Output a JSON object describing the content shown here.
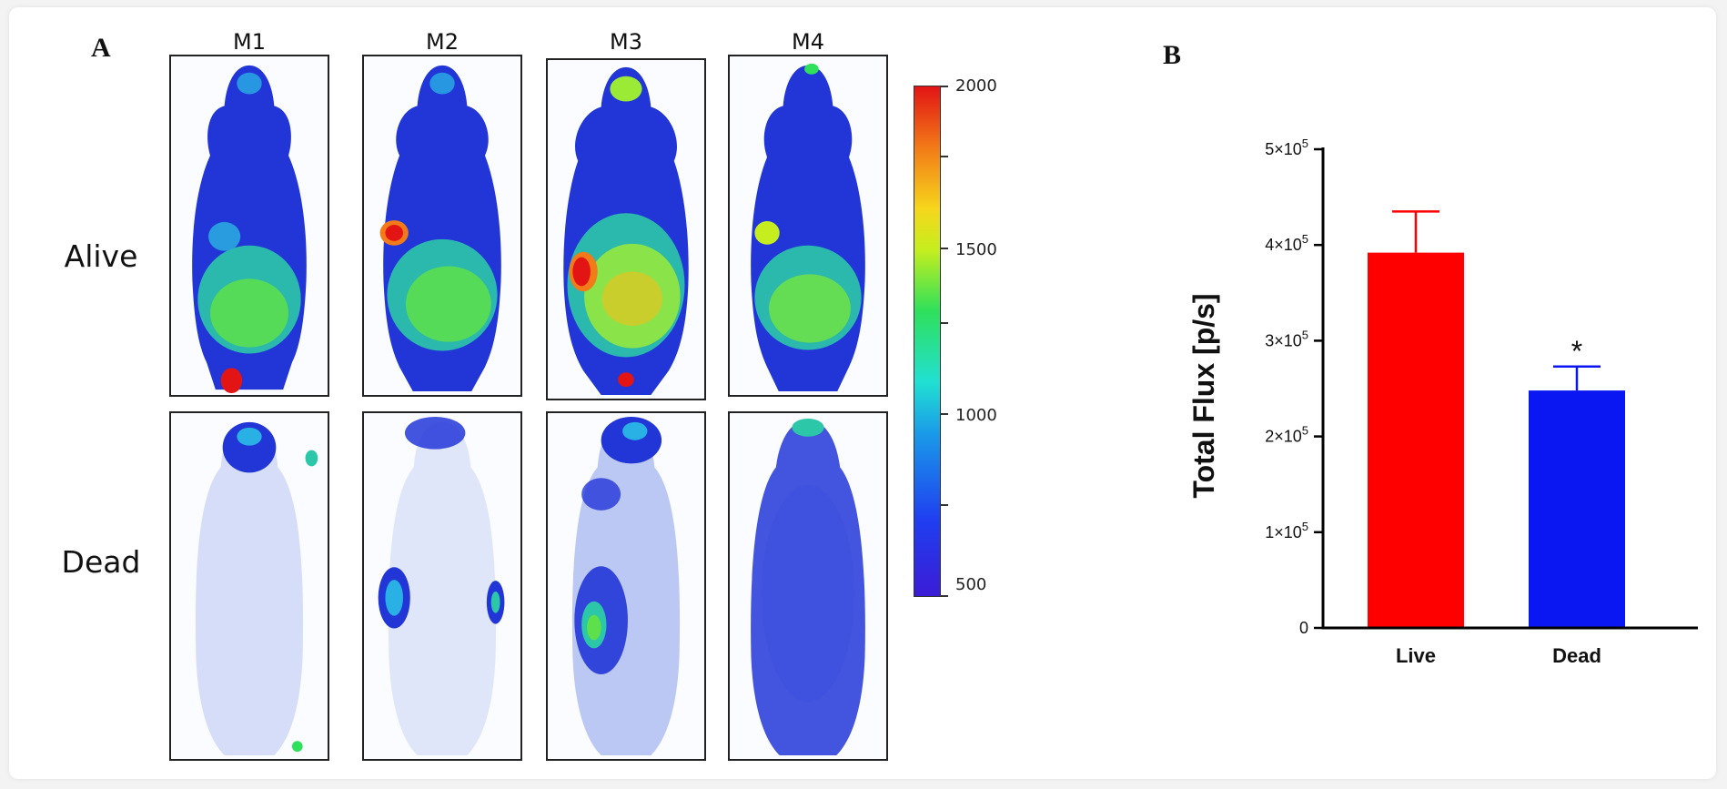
{
  "panel_a": {
    "letter": "A",
    "columns": [
      "M1",
      "M2",
      "M3",
      "M4"
    ],
    "rows": [
      "Alive",
      "Dead"
    ],
    "colorbar": {
      "min": 500,
      "max": 2000,
      "labels": [
        "2000",
        "1500",
        "1000",
        "500"
      ],
      "colors": [
        "#3b1cd6",
        "#1f3ff0",
        "#1a9be8",
        "#21e0d2",
        "#2fe05a",
        "#c6ee1e",
        "#f6d61b",
        "#f27a18",
        "#e21414"
      ]
    }
  },
  "panel_b": {
    "letter": "B"
  },
  "chart_data": {
    "type": "bar",
    "categories": [
      "Live",
      "Dead"
    ],
    "values": [
      392000,
      248000
    ],
    "errors": [
      43000,
      25000
    ],
    "bar_colors": [
      "#ff0000",
      "#0a17f2"
    ],
    "annotations": [
      "",
      "*"
    ],
    "ylabel": "Total Flux [p/s]",
    "ylim": [
      0,
      500000
    ],
    "yticks": [
      0,
      100000,
      200000,
      300000,
      400000,
      500000
    ],
    "ytick_labels": [
      {
        "base": "0",
        "exp": ""
      },
      {
        "base": "1×10",
        "exp": "5"
      },
      {
        "base": "2×10",
        "exp": "5"
      },
      {
        "base": "3×10",
        "exp": "5"
      },
      {
        "base": "4×10",
        "exp": "5"
      },
      {
        "base": "5×10",
        "exp": "5"
      }
    ],
    "grid": false
  }
}
